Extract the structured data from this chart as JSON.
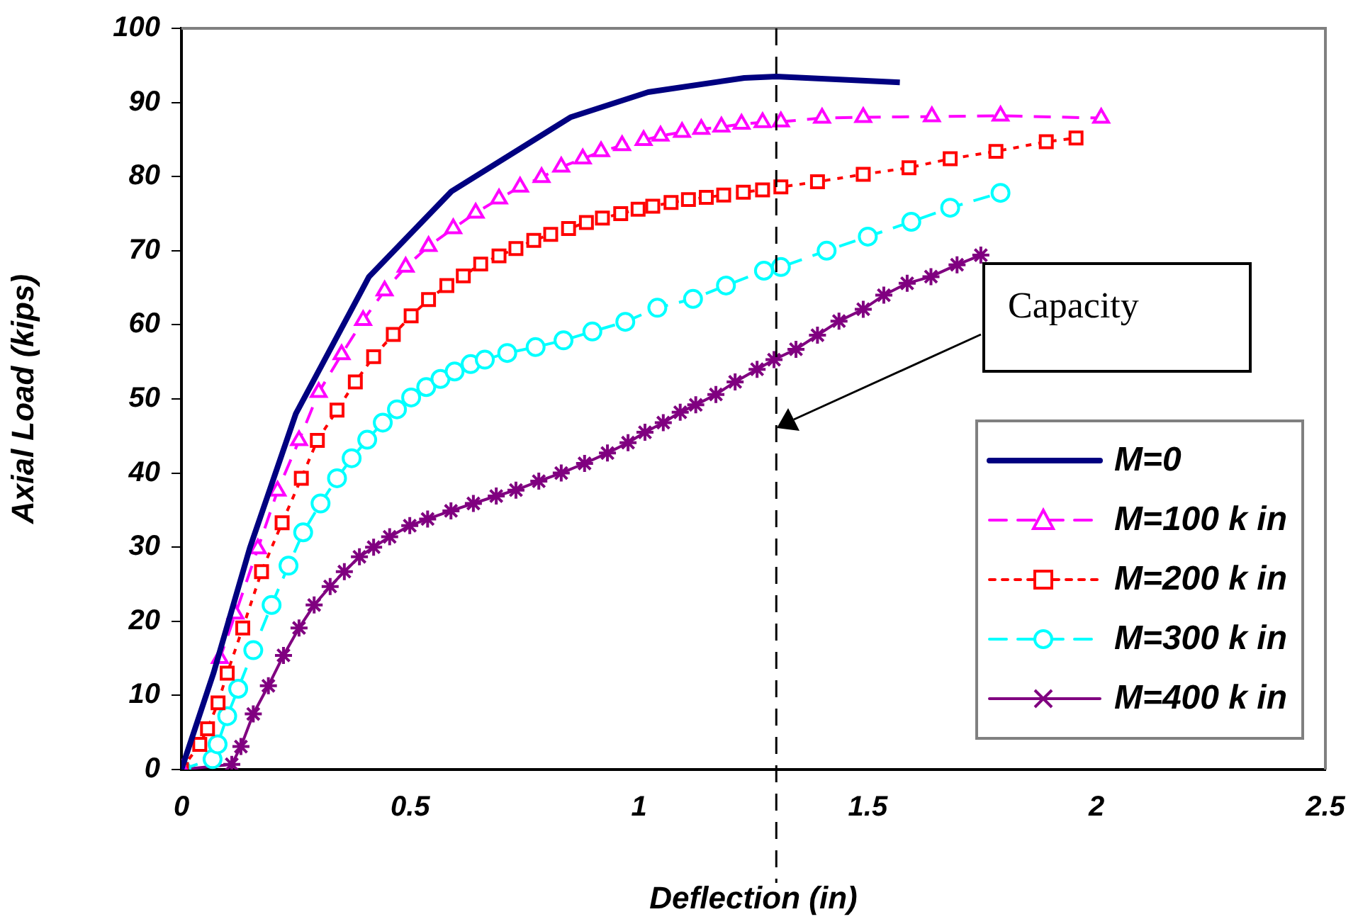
{
  "chart_data": {
    "type": "line",
    "xlabel": "Deflection (in)",
    "ylabel": "Axial Load (kips)",
    "xlim": [
      0,
      2.5
    ],
    "ylim": [
      0,
      100
    ],
    "xticks": [
      0,
      0.5,
      1,
      1.5,
      2,
      2.5
    ],
    "yticks": [
      0,
      10,
      20,
      30,
      40,
      50,
      60,
      70,
      80,
      90,
      100
    ],
    "legend": "bottom right",
    "series": [
      {
        "name": "M=0",
        "color": "#000080",
        "marker": "none",
        "line_style": "solid",
        "x": [
          0,
          0.07,
          0.15,
          0.25,
          0.41,
          0.59,
          0.85,
          1.02,
          1.23,
          1.3,
          1.57
        ],
        "values": [
          0,
          13,
          30,
          48,
          66.5,
          78,
          88,
          91.4,
          93.3,
          93.5,
          92.7
        ]
      },
      {
        "name": "M=100 k in",
        "color": "#ff00ff",
        "marker": "triangle",
        "line_style": "dashed",
        "x": [
          0,
          0.084,
          0.118,
          0.167,
          0.21,
          0.257,
          0.3,
          0.35,
          0.397,
          0.444,
          0.49,
          0.54,
          0.594,
          0.643,
          0.694,
          0.74,
          0.787,
          0.83,
          0.877,
          0.917,
          0.963,
          1.01,
          1.047,
          1.094,
          1.136,
          1.18,
          1.224,
          1.27,
          1.31,
          1.4,
          1.49,
          1.64,
          1.79,
          2.01
        ],
        "values": [
          0,
          15,
          21,
          29.8,
          37.6,
          44.4,
          50.9,
          56,
          60.6,
          64.6,
          67.8,
          70.6,
          73,
          75.1,
          77,
          78.6,
          79.9,
          81.3,
          82.4,
          83.4,
          84.2,
          84.9,
          85.5,
          86,
          86.4,
          86.7,
          87.1,
          87.3,
          87.4,
          87.9,
          88,
          88.1,
          88.2,
          87.9
        ]
      },
      {
        "name": "M=200 k in",
        "color": "#ff0000",
        "marker": "square",
        "line_style": "dotted",
        "x": [
          0,
          0.04,
          0.057,
          0.08,
          0.1,
          0.134,
          0.175,
          0.22,
          0.262,
          0.297,
          0.34,
          0.38,
          0.42,
          0.463,
          0.502,
          0.54,
          0.58,
          0.616,
          0.654,
          0.694,
          0.731,
          0.77,
          0.807,
          0.846,
          0.885,
          0.92,
          0.96,
          0.998,
          1.03,
          1.07,
          1.108,
          1.147,
          1.185,
          1.228,
          1.27,
          1.31,
          1.39,
          1.49,
          1.59,
          1.68,
          1.78,
          1.89,
          1.955
        ],
        "values": [
          0,
          3.4,
          5.5,
          9,
          13,
          19.1,
          26.7,
          33.3,
          39.3,
          44.4,
          48.5,
          52.3,
          55.7,
          58.7,
          61.2,
          63.4,
          65.3,
          66.6,
          68.2,
          69.3,
          70.3,
          71.4,
          72.2,
          73,
          73.8,
          74.4,
          75,
          75.6,
          76,
          76.5,
          76.9,
          77.2,
          77.5,
          77.9,
          78.2,
          78.6,
          79.3,
          80.3,
          81.2,
          82.4,
          83.4,
          84.7,
          85.2
        ]
      },
      {
        "name": "M=300 k in",
        "color": "#00ffff",
        "marker": "circle",
        "line_style": "dashed",
        "x": [
          0,
          0.068,
          0.079,
          0.1,
          0.124,
          0.157,
          0.197,
          0.234,
          0.266,
          0.304,
          0.34,
          0.372,
          0.406,
          0.44,
          0.471,
          0.502,
          0.535,
          0.566,
          0.597,
          0.632,
          0.663,
          0.712,
          0.774,
          0.835,
          0.898,
          0.97,
          1.04,
          1.118,
          1.19,
          1.273,
          1.31,
          1.41,
          1.5,
          1.595,
          1.68,
          1.79
        ],
        "values": [
          0,
          1.4,
          3.4,
          7.2,
          10.9,
          16.1,
          22.2,
          27.5,
          32,
          35.9,
          39.3,
          42,
          44.5,
          46.8,
          48.6,
          50.2,
          51.6,
          52.7,
          53.7,
          54.7,
          55.3,
          56.2,
          57,
          57.9,
          59.1,
          60.4,
          62.3,
          63.5,
          65.3,
          67.3,
          67.8,
          70,
          71.9,
          73.9,
          75.8,
          77.8
        ]
      },
      {
        "name": "M=400 k in",
        "color": "#800080",
        "marker": "cross",
        "line_style": "solid",
        "x": [
          0,
          0.11,
          0.13,
          0.157,
          0.19,
          0.223,
          0.257,
          0.29,
          0.325,
          0.356,
          0.389,
          0.42,
          0.455,
          0.499,
          0.538,
          0.589,
          0.638,
          0.688,
          0.731,
          0.781,
          0.83,
          0.881,
          0.931,
          0.976,
          1.013,
          1.053,
          1.09,
          1.124,
          1.168,
          1.21,
          1.258,
          1.295,
          1.343,
          1.39,
          1.437,
          1.49,
          1.535,
          1.586,
          1.638,
          1.695,
          1.747
        ],
        "values": [
          0,
          0.7,
          3.1,
          7.5,
          11.3,
          15.4,
          19.1,
          22.2,
          24.7,
          26.7,
          28.7,
          30,
          31.4,
          32.9,
          33.8,
          34.9,
          35.9,
          36.9,
          37.7,
          38.9,
          40,
          41.3,
          42.7,
          44.1,
          45.5,
          46.8,
          48.2,
          49.2,
          50.6,
          52.3,
          54,
          55.3,
          56.7,
          58.6,
          60.5,
          62.1,
          64,
          65.6,
          66.5,
          68.1,
          69.4
        ]
      }
    ],
    "ref_lines": [
      {
        "axis": "x",
        "value": 1.3,
        "color": "#000000",
        "line_style": "dashed"
      }
    ],
    "annotations": [
      "Capacity"
    ]
  }
}
